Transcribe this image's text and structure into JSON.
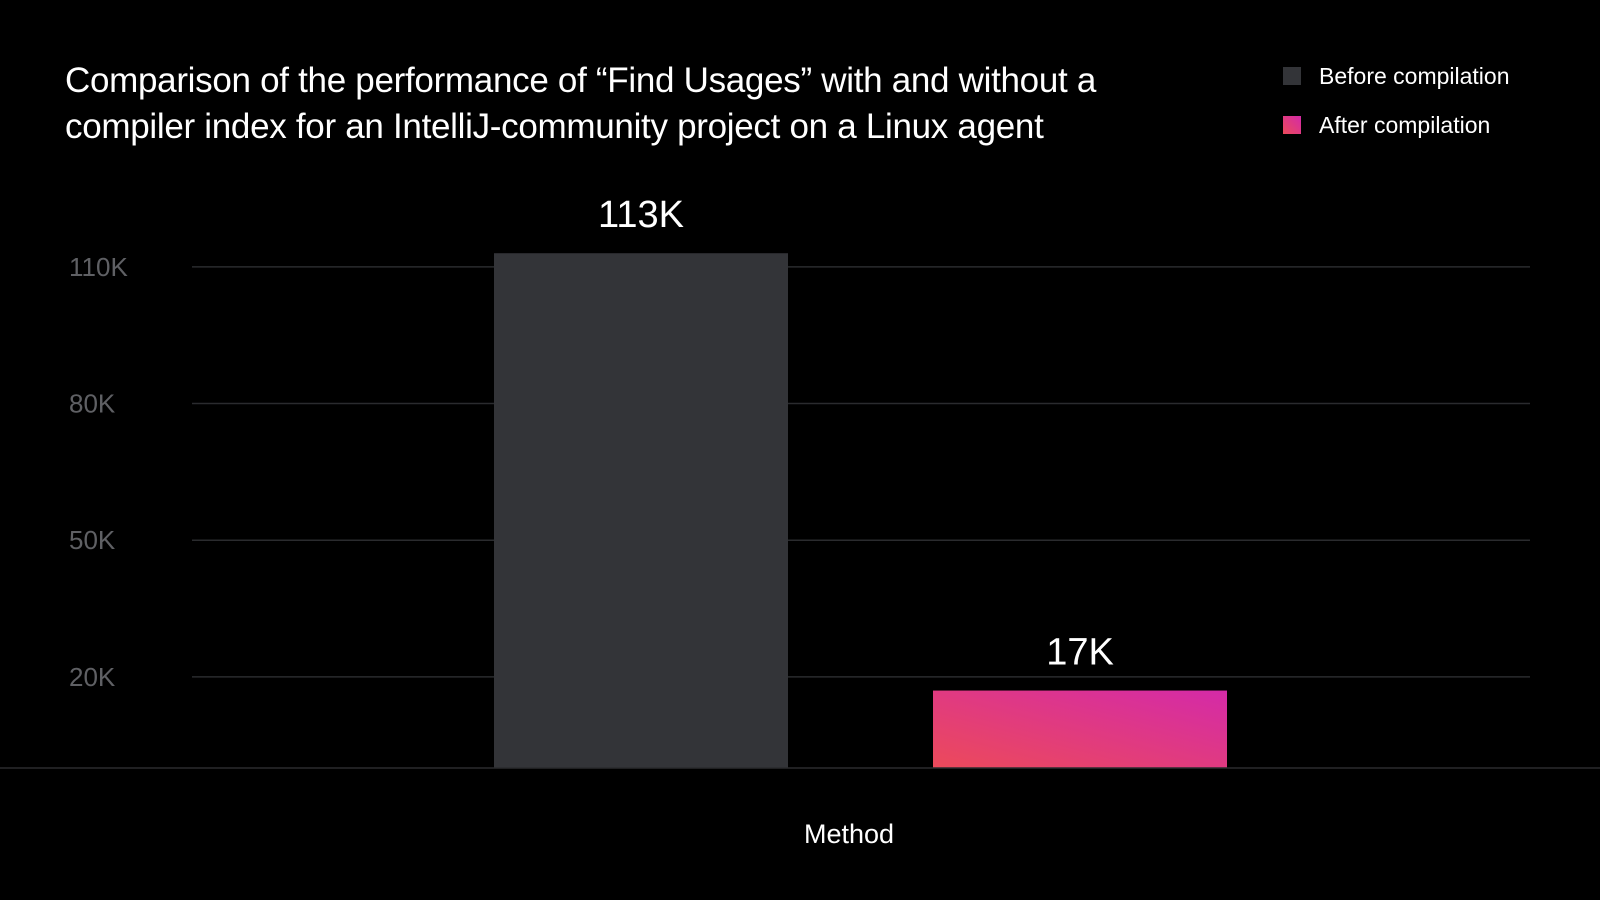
{
  "chart_data": {
    "type": "bar",
    "title": "Comparison of the performance of “Find Usages” with and without a compiler index for an IntelliJ-community project on a Linux agent",
    "xlabel": "Method",
    "ylabel": "",
    "ylim": [
      0,
      115000
    ],
    "yticks": [
      20000,
      50000,
      80000,
      110000
    ],
    "ytick_labels": [
      "20K",
      "50K",
      "80K",
      "110K"
    ],
    "grid": true,
    "legend_position": "top-right",
    "categories": [
      "Method"
    ],
    "series": [
      {
        "name": "Before compilation",
        "values": [
          113000
        ],
        "value_label": "113K",
        "color": "#333438"
      },
      {
        "name": "After compilation",
        "values": [
          17000
        ],
        "value_label": "17K",
        "color": "#e24a6e",
        "gradient": [
          "#ec4a5a",
          "#d42aa8"
        ]
      }
    ]
  }
}
